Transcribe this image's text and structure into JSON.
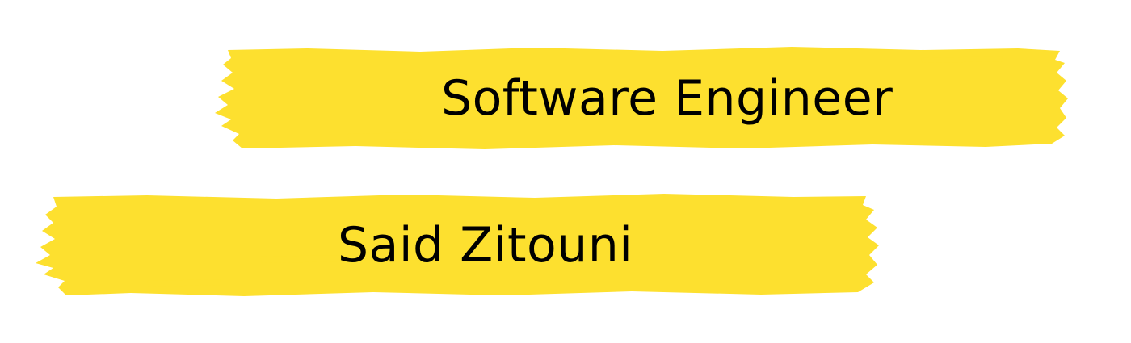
{
  "colors": {
    "highlight": "#FDE02F",
    "text": "#000000",
    "background": "#FFFFFF"
  },
  "banner": {
    "title": "Software Engineer",
    "name": "Said Zitouni"
  }
}
